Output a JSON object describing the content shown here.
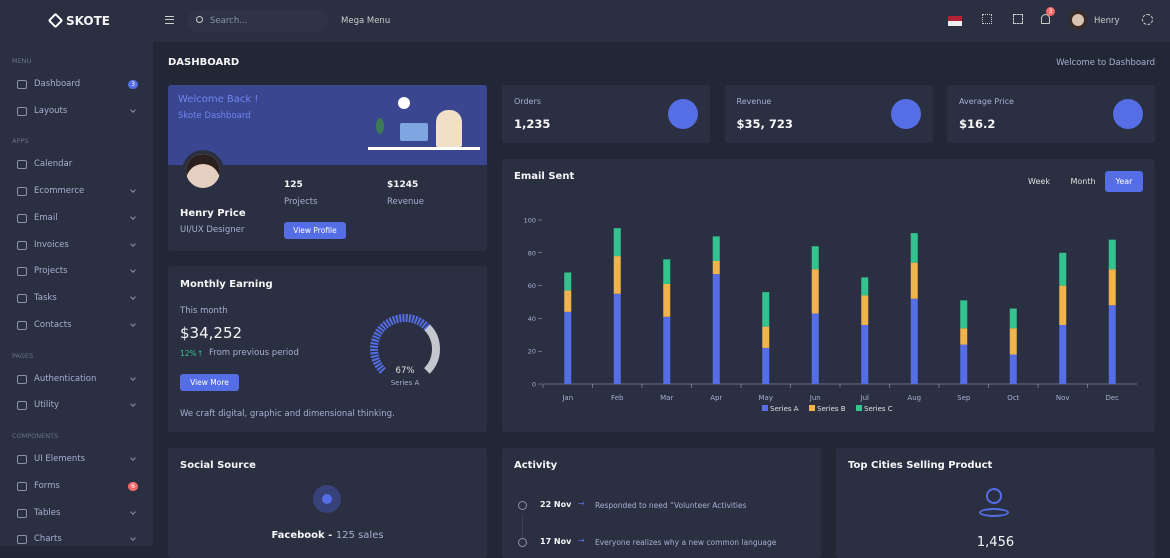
{
  "topbar": {
    "logo": "SKOTE",
    "search_placeholder": "Search...",
    "mega_menu": "Mega Menu",
    "notification_count": "3",
    "user": "Henry"
  },
  "sidebar": {
    "sections": [
      {
        "title": "MENU",
        "items": [
          {
            "label": "Dashboard",
            "badge": "3"
          },
          {
            "label": "Layouts"
          }
        ]
      },
      {
        "title": "APPS",
        "items": [
          {
            "label": "Calendar"
          },
          {
            "label": "Ecommerce"
          },
          {
            "label": "Email"
          },
          {
            "label": "Invoices"
          },
          {
            "label": "Projects"
          },
          {
            "label": "Tasks"
          },
          {
            "label": "Contacts"
          }
        ]
      },
      {
        "title": "PAGES",
        "items": [
          {
            "label": "Authentication"
          },
          {
            "label": "Utility"
          }
        ]
      },
      {
        "title": "COMPONENTS",
        "items": [
          {
            "label": "UI Elements"
          },
          {
            "label": "Forms",
            "badge": "6"
          },
          {
            "label": "Tables"
          },
          {
            "label": "Charts"
          }
        ]
      }
    ]
  },
  "page": {
    "title": "DASHBOARD",
    "breadcrumb": "Welcome to Dashboard"
  },
  "welcome_card": {
    "heading": "Welcome Back !",
    "subheading": "Skote Dashboard",
    "name": "Henry Price",
    "role": "UI/UX Designer",
    "projects": "125",
    "projects_label": "Projects",
    "revenue": "$1245",
    "revenue_label": "Revenue",
    "button": "View Profile"
  },
  "stats": [
    {
      "title": "Orders",
      "value": "1,235"
    },
    {
      "title": "Revenue",
      "value": "$35, 723"
    },
    {
      "title": "Average Price",
      "value": "$16.2"
    }
  ],
  "monthly_earning": {
    "title": "Monthly Earning",
    "period": "This month",
    "amount": "$34,252",
    "change": "12%",
    "change_text": "From previous period",
    "button": "View More",
    "footer": "We craft digital, graphic and dimensional thinking.",
    "gauge": {
      "value": 67,
      "value_label": "67%",
      "name": "Series A"
    }
  },
  "chart_data": {
    "type": "bar",
    "stacked": true,
    "title": "Email Sent",
    "range_buttons": [
      "Week",
      "Month",
      "Year"
    ],
    "active_range": "Year",
    "categories": [
      "Jan",
      "Feb",
      "Mar",
      "Apr",
      "May",
      "Jun",
      "Jul",
      "Aug",
      "Sep",
      "Oct",
      "Nov",
      "Dec"
    ],
    "series": [
      {
        "name": "Series A",
        "color": "#556ee6",
        "values": [
          44,
          55,
          41,
          67,
          22,
          43,
          36,
          52,
          24,
          18,
          36,
          48
        ]
      },
      {
        "name": "Series B",
        "color": "#f1b44c",
        "values": [
          13,
          23,
          20,
          8,
          13,
          27,
          18,
          22,
          10,
          16,
          24,
          22
        ]
      },
      {
        "name": "Series C",
        "color": "#34c38f",
        "values": [
          11,
          17,
          15,
          15,
          21,
          14,
          11,
          18,
          17,
          12,
          20,
          18
        ]
      }
    ],
    "ylim": [
      0,
      100
    ],
    "yticks": [
      0,
      20,
      40,
      60,
      80,
      100
    ],
    "legend": "bottom"
  },
  "social_source": {
    "title": "Social Source",
    "source": "Facebook - ",
    "sales": "125 sales"
  },
  "activity": {
    "title": "Activity",
    "items": [
      {
        "date": "22 Nov",
        "text": "Responded to need “Volunteer Activities"
      },
      {
        "date": "17 Nov",
        "text": "Everyone realizes why a new common language"
      }
    ]
  },
  "top_cities": {
    "title": "Top Cities Selling Product",
    "total": "1,456"
  }
}
